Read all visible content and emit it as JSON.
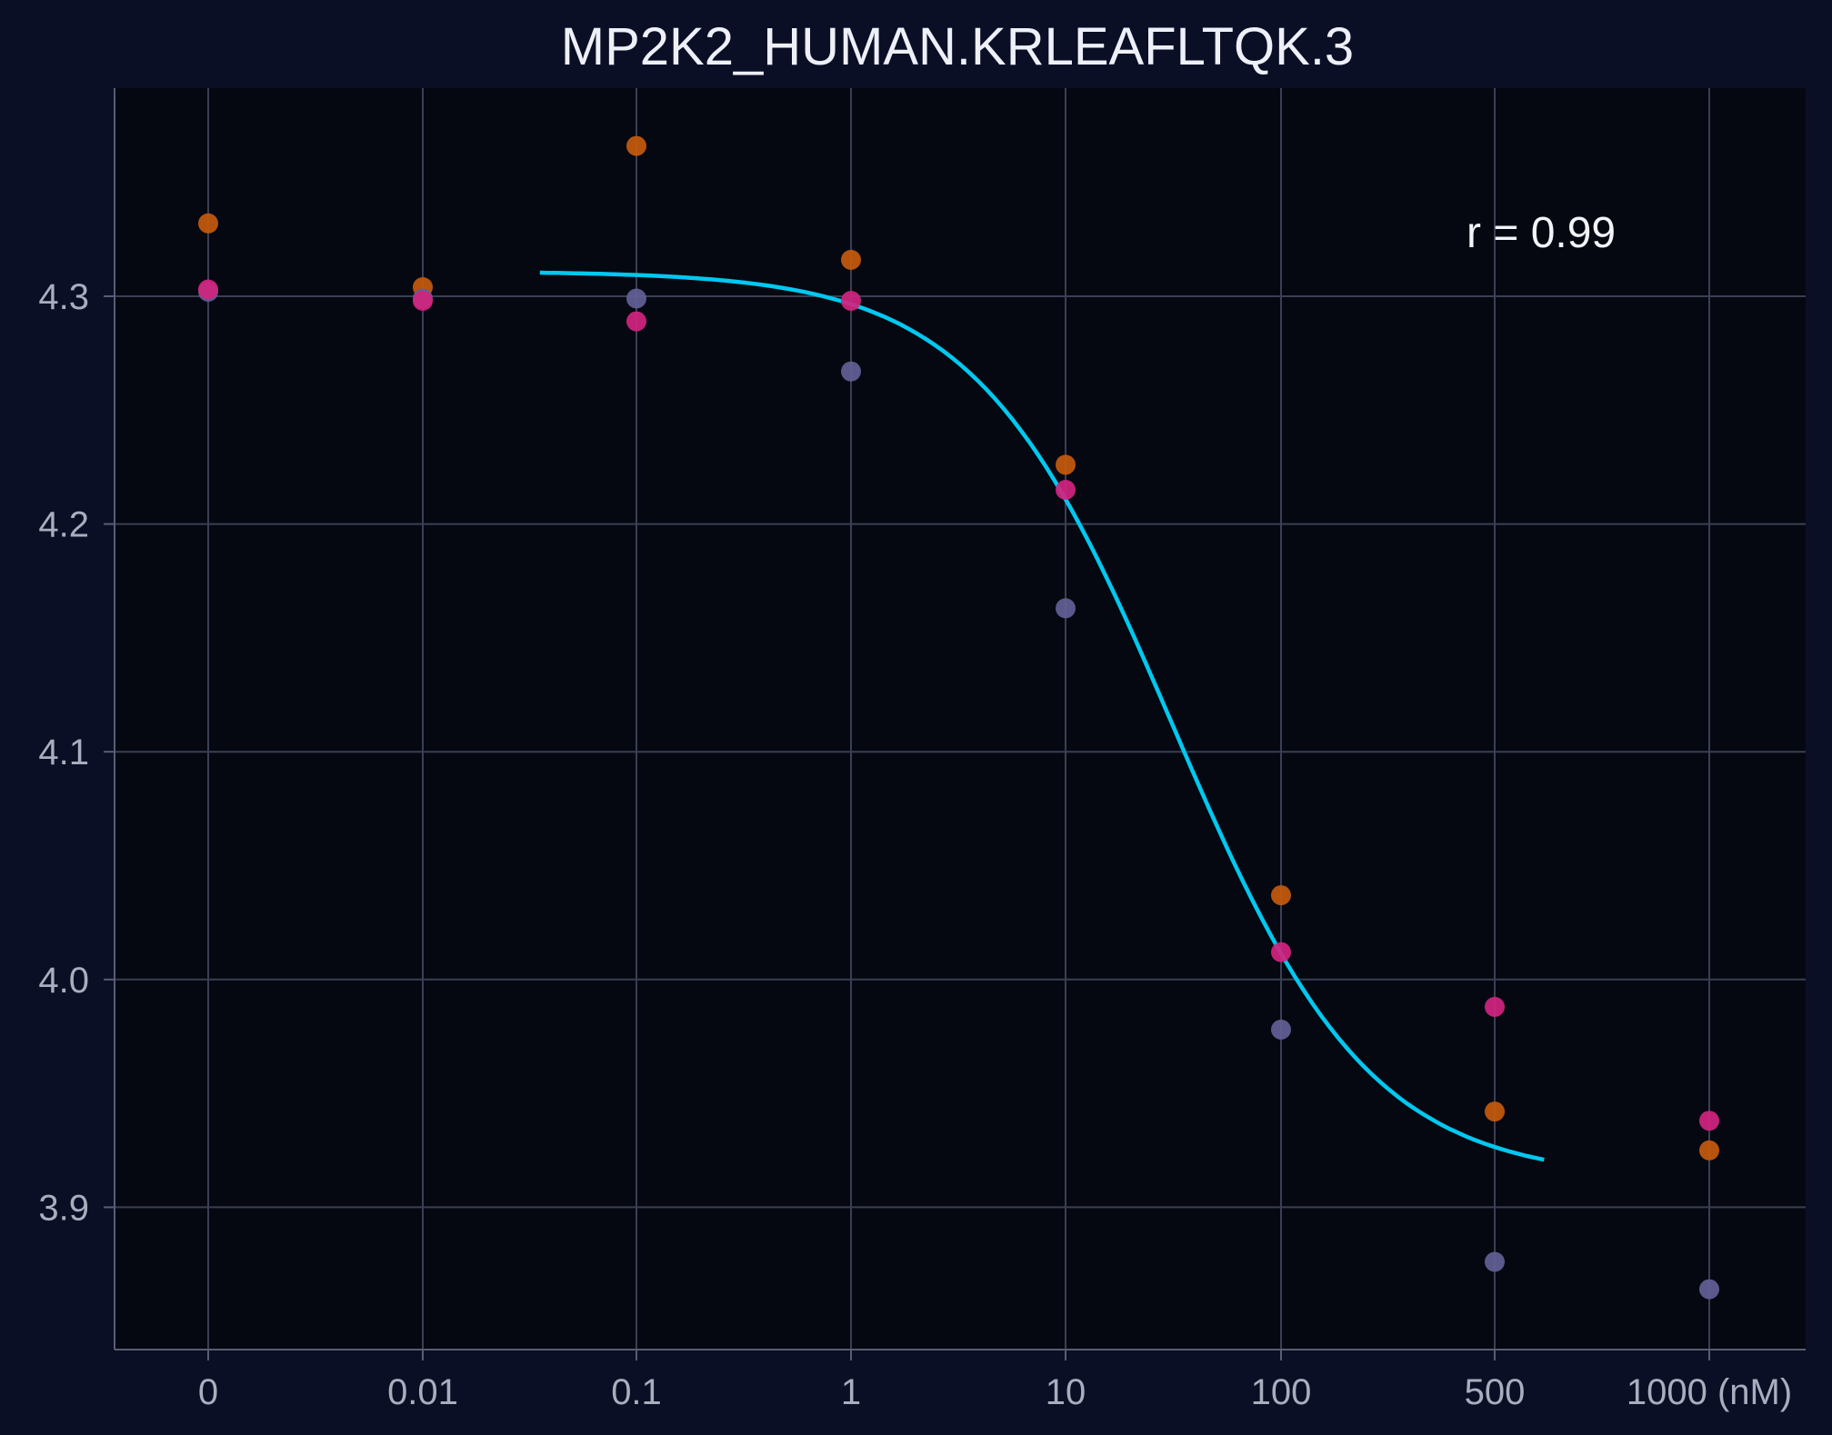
{
  "chart_data": {
    "type": "scatter",
    "title": "MP2K2_HUMAN.KRLEAFLTQK.3",
    "xlabel": "",
    "ylabel": "",
    "x_ticks": [
      "0",
      "0.01",
      "0.1",
      "1",
      "10",
      "100",
      "500",
      "1000 (nM)"
    ],
    "y_ticks": [
      "3.9",
      "4.0",
      "4.1",
      "4.2",
      "4.3"
    ],
    "ylim": [
      3.84,
      4.39
    ],
    "grid": true,
    "annotation": "r = 0.99",
    "series": [
      {
        "color": "#c65a0c",
        "points": [
          {
            "x": "0",
            "y": 4.332
          },
          {
            "x": "0.01",
            "y": 4.304
          },
          {
            "x": "0.1",
            "y": 4.366
          },
          {
            "x": "1",
            "y": 4.316
          },
          {
            "x": "10",
            "y": 4.226
          },
          {
            "x": "100",
            "y": 4.037
          },
          {
            "x": "500",
            "y": 3.942
          },
          {
            "x": "1000 (nM)",
            "y": 3.925
          }
        ]
      },
      {
        "color": "#636096",
        "points": [
          {
            "x": "0",
            "y": 4.302
          },
          {
            "x": "0.01",
            "y": 4.299
          },
          {
            "x": "0.1",
            "y": 4.299
          },
          {
            "x": "1",
            "y": 4.267
          },
          {
            "x": "10",
            "y": 4.163
          },
          {
            "x": "100",
            "y": 3.978
          },
          {
            "x": "500",
            "y": 3.876
          },
          {
            "x": "1000 (nM)",
            "y": 3.864
          }
        ]
      },
      {
        "color": "#d1247f",
        "points": [
          {
            "x": "0",
            "y": 4.303
          },
          {
            "x": "0.01",
            "y": 4.298
          },
          {
            "x": "0.1",
            "y": 4.289
          },
          {
            "x": "1",
            "y": 4.298
          },
          {
            "x": "10",
            "y": 4.215
          },
          {
            "x": "100",
            "y": 4.012
          },
          {
            "x": "500",
            "y": 3.988
          },
          {
            "x": "1000 (nM)",
            "y": 3.938
          }
        ]
      }
    ],
    "fit": {
      "color": "#00c8f0",
      "top": 4.311,
      "bottom": 3.912,
      "log10_ec50": 1.5,
      "hill": 0.95
    }
  }
}
